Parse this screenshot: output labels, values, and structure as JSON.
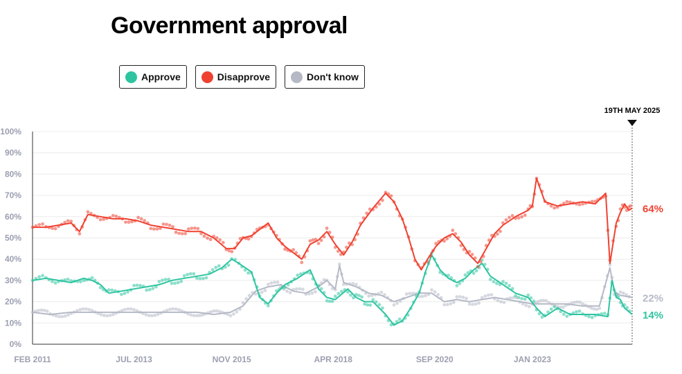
{
  "title": "Government approval",
  "legend": [
    {
      "label": "Approve",
      "color": "#2ec4a0"
    },
    {
      "label": "Disapprove",
      "color": "#ef4130"
    },
    {
      "label": "Don't know",
      "color": "#b5b9c6"
    }
  ],
  "chart_data": {
    "type": "line",
    "title": "Government approval",
    "xlabel": "",
    "ylabel": "",
    "ylim": [
      0,
      100
    ],
    "y_ticks": [
      "0%",
      "10%",
      "20%",
      "30%",
      "40%",
      "50%",
      "60%",
      "70%",
      "80%",
      "90%",
      "100%"
    ],
    "x_ticks": [
      {
        "label": "FEB 2011",
        "x": 2011.08
      },
      {
        "label": "JUL 2013",
        "x": 2013.5
      },
      {
        "label": "NOV 2015",
        "x": 2015.83
      },
      {
        "label": "APR 2018",
        "x": 2018.25
      },
      {
        "label": "SEP 2020",
        "x": 2020.67
      },
      {
        "label": "JAN 2023",
        "x": 2023.0
      }
    ],
    "xlim": [
      2011.08,
      2025.38
    ],
    "marker": {
      "label": "19TH MAY 2025",
      "x": 2025.38
    },
    "end_labels": [
      {
        "series": "Disapprove",
        "text": "64%",
        "value": 64
      },
      {
        "series": "Don't know",
        "text": "22%",
        "value": 22
      },
      {
        "series": "Approve",
        "text": "14%",
        "value": 14
      }
    ],
    "grid": true,
    "series": [
      {
        "name": "Approve",
        "color": "#2ec4a0",
        "points": [
          [
            2011.08,
            30
          ],
          [
            2011.4,
            31
          ],
          [
            2011.7,
            30
          ],
          [
            2012.0,
            29
          ],
          [
            2012.3,
            31
          ],
          [
            2012.5,
            30
          ],
          [
            2012.7,
            28
          ],
          [
            2012.9,
            24
          ],
          [
            2013.2,
            25
          ],
          [
            2013.5,
            26
          ],
          [
            2013.8,
            27
          ],
          [
            2014.1,
            28
          ],
          [
            2014.4,
            30
          ],
          [
            2014.7,
            31
          ],
          [
            2015.0,
            32
          ],
          [
            2015.3,
            33
          ],
          [
            2015.6,
            36
          ],
          [
            2015.83,
            40
          ],
          [
            2016.0,
            38
          ],
          [
            2016.3,
            34
          ],
          [
            2016.5,
            22
          ],
          [
            2016.7,
            19
          ],
          [
            2016.9,
            24
          ],
          [
            2017.1,
            28
          ],
          [
            2017.4,
            31
          ],
          [
            2017.7,
            35
          ],
          [
            2017.9,
            26
          ],
          [
            2018.1,
            22
          ],
          [
            2018.3,
            21
          ],
          [
            2018.6,
            26
          ],
          [
            2018.8,
            22
          ],
          [
            2019.0,
            20
          ],
          [
            2019.2,
            20
          ],
          [
            2019.5,
            14
          ],
          [
            2019.7,
            9
          ],
          [
            2019.9,
            11
          ],
          [
            2020.1,
            17
          ],
          [
            2020.3,
            24
          ],
          [
            2020.45,
            34
          ],
          [
            2020.6,
            42
          ],
          [
            2020.8,
            35
          ],
          [
            2021.0,
            31
          ],
          [
            2021.2,
            29
          ],
          [
            2021.4,
            31
          ],
          [
            2021.6,
            35
          ],
          [
            2021.8,
            38
          ],
          [
            2022.0,
            32
          ],
          [
            2022.3,
            28
          ],
          [
            2022.6,
            24
          ],
          [
            2022.9,
            22
          ],
          [
            2023.1,
            17
          ],
          [
            2023.3,
            13
          ],
          [
            2023.6,
            17
          ],
          [
            2023.9,
            14
          ],
          [
            2024.2,
            14
          ],
          [
            2024.5,
            14
          ],
          [
            2024.8,
            13
          ],
          [
            2024.9,
            30
          ],
          [
            2025.0,
            22
          ],
          [
            2025.1,
            21
          ],
          [
            2025.2,
            17
          ],
          [
            2025.38,
            14
          ]
        ]
      },
      {
        "name": "Disapprove",
        "color": "#ef4130",
        "points": [
          [
            2011.08,
            55
          ],
          [
            2011.4,
            55
          ],
          [
            2011.7,
            56
          ],
          [
            2012.0,
            57
          ],
          [
            2012.2,
            53
          ],
          [
            2012.4,
            61
          ],
          [
            2012.7,
            60
          ],
          [
            2013.0,
            59
          ],
          [
            2013.3,
            59
          ],
          [
            2013.6,
            58
          ],
          [
            2013.9,
            56
          ],
          [
            2014.2,
            55
          ],
          [
            2014.5,
            54
          ],
          [
            2014.8,
            53
          ],
          [
            2015.1,
            53
          ],
          [
            2015.4,
            50
          ],
          [
            2015.7,
            45
          ],
          [
            2015.9,
            45
          ],
          [
            2016.1,
            50
          ],
          [
            2016.3,
            51
          ],
          [
            2016.5,
            54
          ],
          [
            2016.7,
            57
          ],
          [
            2016.9,
            50
          ],
          [
            2017.1,
            46
          ],
          [
            2017.3,
            43
          ],
          [
            2017.5,
            40
          ],
          [
            2017.7,
            47
          ],
          [
            2017.9,
            49
          ],
          [
            2018.1,
            53
          ],
          [
            2018.3,
            47
          ],
          [
            2018.5,
            42
          ],
          [
            2018.7,
            48
          ],
          [
            2018.9,
            56
          ],
          [
            2019.2,
            64
          ],
          [
            2019.5,
            71
          ],
          [
            2019.7,
            67
          ],
          [
            2019.9,
            59
          ],
          [
            2020.05,
            50
          ],
          [
            2020.2,
            40
          ],
          [
            2020.35,
            35
          ],
          [
            2020.5,
            40
          ],
          [
            2020.7,
            46
          ],
          [
            2020.9,
            50
          ],
          [
            2021.1,
            52
          ],
          [
            2021.3,
            48
          ],
          [
            2021.5,
            42
          ],
          [
            2021.7,
            38
          ],
          [
            2021.9,
            45
          ],
          [
            2022.1,
            52
          ],
          [
            2022.3,
            56
          ],
          [
            2022.6,
            60
          ],
          [
            2022.9,
            63
          ],
          [
            2023.0,
            65
          ],
          [
            2023.1,
            78
          ],
          [
            2023.3,
            67
          ],
          [
            2023.6,
            65
          ],
          [
            2023.9,
            66
          ],
          [
            2024.2,
            67
          ],
          [
            2024.5,
            66
          ],
          [
            2024.75,
            71
          ],
          [
            2024.85,
            38
          ],
          [
            2025.0,
            57
          ],
          [
            2025.1,
            62
          ],
          [
            2025.2,
            66
          ],
          [
            2025.3,
            63
          ],
          [
            2025.38,
            64
          ]
        ]
      },
      {
        "name": "Don't know",
        "color": "#b5b9c6",
        "points": [
          [
            2011.08,
            15
          ],
          [
            2011.5,
            14
          ],
          [
            2012.0,
            15
          ],
          [
            2012.5,
            15
          ],
          [
            2013.0,
            15
          ],
          [
            2013.5,
            15
          ],
          [
            2014.0,
            15
          ],
          [
            2014.5,
            15
          ],
          [
            2015.0,
            15
          ],
          [
            2015.4,
            14
          ],
          [
            2015.8,
            15
          ],
          [
            2016.1,
            18
          ],
          [
            2016.4,
            25
          ],
          [
            2016.7,
            27
          ],
          [
            2017.0,
            28
          ],
          [
            2017.3,
            25
          ],
          [
            2017.6,
            24
          ],
          [
            2017.9,
            27
          ],
          [
            2018.1,
            30
          ],
          [
            2018.3,
            26
          ],
          [
            2018.4,
            37
          ],
          [
            2018.5,
            29
          ],
          [
            2018.8,
            27
          ],
          [
            2019.1,
            24
          ],
          [
            2019.4,
            23
          ],
          [
            2019.7,
            20
          ],
          [
            2020.0,
            22
          ],
          [
            2020.3,
            24
          ],
          [
            2020.6,
            24
          ],
          [
            2020.9,
            20
          ],
          [
            2021.2,
            21
          ],
          [
            2021.5,
            20
          ],
          [
            2021.8,
            21
          ],
          [
            2022.1,
            22
          ],
          [
            2022.4,
            21
          ],
          [
            2022.7,
            20
          ],
          [
            2023.0,
            19
          ],
          [
            2023.4,
            19
          ],
          [
            2023.8,
            19
          ],
          [
            2024.2,
            18
          ],
          [
            2024.6,
            18
          ],
          [
            2024.85,
            36
          ],
          [
            2024.95,
            25
          ],
          [
            2025.1,
            23
          ],
          [
            2025.38,
            22
          ]
        ]
      }
    ]
  }
}
